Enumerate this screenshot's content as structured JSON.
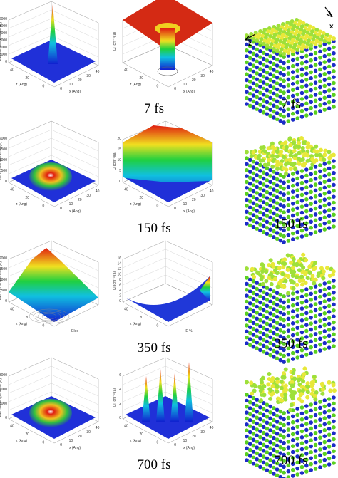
{
  "rows": [
    {
      "left": {
        "value_axis": "electron temperature (K)",
        "value_ticks": [
          "0",
          "1000",
          "2000",
          "3000",
          "4000",
          "5000",
          "6000"
        ],
        "z_axis": "z (Ang)",
        "z_ticks": [
          "40",
          "20",
          "0"
        ],
        "x_axis": "x (Ang)",
        "x_ticks": [
          "0",
          "10",
          "20",
          "30",
          "40"
        ]
      },
      "middle": {
        "value_axis": "Cl (cm⁻³)(a)",
        "value_ticks": [],
        "z_axis": "z (Ang)",
        "z_ticks": [
          "40",
          "20",
          "0"
        ],
        "x_axis": "x (Ang)",
        "x_ticks": [
          "0",
          "10",
          "20",
          "30",
          "40"
        ]
      },
      "center_label": "7 fs",
      "right_label": "7 fs",
      "direction_labels": {
        "x": "x",
        "z": "z"
      }
    },
    {
      "left": {
        "value_axis": "electron temperature (K)",
        "value_ticks": [
          "0",
          "500",
          "1000",
          "1500",
          "2000"
        ],
        "z_axis": "z (Ang)",
        "z_ticks": [
          "40",
          "20",
          "0"
        ],
        "x_axis": "x (Ang)",
        "x_ticks": [
          "0",
          "10",
          "20",
          "30",
          "40"
        ]
      },
      "middle": {
        "value_axis": "Cl (cm⁻³)(a)",
        "value_ticks": [
          "0",
          "5",
          "10",
          "15",
          "20"
        ],
        "z_axis": "z (Ang)",
        "z_ticks": [
          "40",
          "20",
          "0"
        ],
        "x_axis": "x (Ang)",
        "x_ticks": [
          "0",
          "10",
          "20",
          "30",
          "40"
        ]
      },
      "center_label": "150 fs",
      "right_label": "150 fs"
    },
    {
      "left": {
        "value_axis": "electron temperature (K)",
        "value_ticks": [
          "0",
          "500",
          "1000",
          "1500",
          "2000"
        ],
        "z_axis": "z (Ang)",
        "z_ticks": [
          "40",
          "20",
          "0"
        ],
        "x_axis": "Elec",
        "x_ticks": []
      },
      "middle": {
        "value_axis": "Cl (cm⁻³)(a)",
        "value_ticks": [
          "0",
          "2",
          "4",
          "6",
          "8",
          "10",
          "12",
          "14",
          "16"
        ],
        "z_axis": "z (Ang)",
        "z_ticks": [
          "40",
          "20",
          "0"
        ],
        "x_axis": "E %",
        "x_ticks": []
      },
      "center_label": "350 fs",
      "right_label": "350 fs"
    },
    {
      "left": {
        "value_axis": "electron temperature (K)",
        "value_ticks": [
          "0",
          "1000",
          "2000",
          "3000"
        ],
        "z_axis": "z (Ang)",
        "z_ticks": [
          "40",
          "20",
          "0"
        ],
        "x_axis": "x (Ang)",
        "x_ticks": [
          "0",
          "10",
          "20",
          "30",
          "40"
        ]
      },
      "middle": {
        "value_axis": "Cl (cm⁻³)(a)",
        "value_ticks": [
          "0",
          "2",
          "4",
          "6"
        ],
        "z_axis": "z (Ang)",
        "z_ticks": [
          "40",
          "20",
          "0"
        ],
        "x_axis": "x (Ang)",
        "x_ticks": [
          "0",
          "10",
          "20",
          "30",
          "40"
        ]
      },
      "center_label": "700 fs",
      "right_label": "700 fs"
    }
  ]
}
